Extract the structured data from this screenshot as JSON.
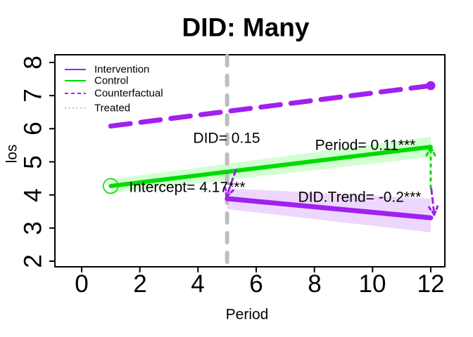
{
  "chart_data": {
    "type": "line",
    "title": "DID: Many",
    "xlabel": "Period",
    "ylabel": "los",
    "xlim": [
      -0.9,
      12.5
    ],
    "ylim": [
      1.8,
      8.2
    ],
    "grid": false,
    "x_ticks": [
      0,
      2,
      4,
      6,
      8,
      10,
      12
    ],
    "y_ticks": [
      2,
      3,
      4,
      5,
      6,
      7,
      8
    ],
    "legend_position": "top-left",
    "legend": [
      {
        "label": "Intervention",
        "color": "#A020F0",
        "style": "solid"
      },
      {
        "label": "Control",
        "color": "#00DB00",
        "style": "solid"
      },
      {
        "label": "Counterfactual",
        "color": "#A020F0",
        "style": "dashed"
      },
      {
        "label": "Treated",
        "color": "#BEBEBE",
        "style": "dotted"
      }
    ],
    "treated_line": {
      "x": 5,
      "color": "#BEBEBE",
      "style": "dashed"
    },
    "series": [
      {
        "name": "Counterfactual",
        "style": "dashed",
        "color": "#A020F0",
        "width": 7,
        "x": [
          1,
          12
        ],
        "y": [
          6.08,
          7.3
        ],
        "end_dot": true
      },
      {
        "name": "Control",
        "style": "solid",
        "color": "#00DB00",
        "width": 6,
        "x": [
          1,
          12
        ],
        "y": [
          4.27,
          5.45
        ],
        "band_upper": [
          4.47,
          5.76
        ],
        "band_lower": [
          4.06,
          5.14
        ],
        "band_color": "rgba(0,255,0,0.18)",
        "start_circle": true
      },
      {
        "name": "Intervention",
        "style": "solid",
        "color": "#A020F0",
        "width": 7,
        "x": [
          5,
          12
        ],
        "y": [
          3.89,
          3.31
        ],
        "band_upper": [
          4.2,
          3.89
        ],
        "band_lower": [
          3.57,
          2.87
        ],
        "band_color": "rgba(160,32,240,0.18)"
      }
    ],
    "arrows": [
      {
        "color": "#00DB00",
        "dash": "3 7",
        "tail": [
          12,
          4.22
        ],
        "tip": [
          12,
          5.44
        ]
      },
      {
        "color": "#A020F0",
        "dash": "7 6",
        "tail": [
          12.02,
          4.18
        ],
        "tip": [
          12.12,
          3.4
        ]
      },
      {
        "color": "#A020F0",
        "dash": "7 6",
        "tail": [
          5.3,
          4.75
        ],
        "tip": [
          4.98,
          3.95
        ]
      }
    ],
    "annotations": [
      {
        "text": "DID= 0.15"
      },
      {
        "text": "Period= 0.11***"
      },
      {
        "text": "Intercept= 4.17***"
      },
      {
        "text": "DID.Trend= -0.2***"
      }
    ]
  }
}
